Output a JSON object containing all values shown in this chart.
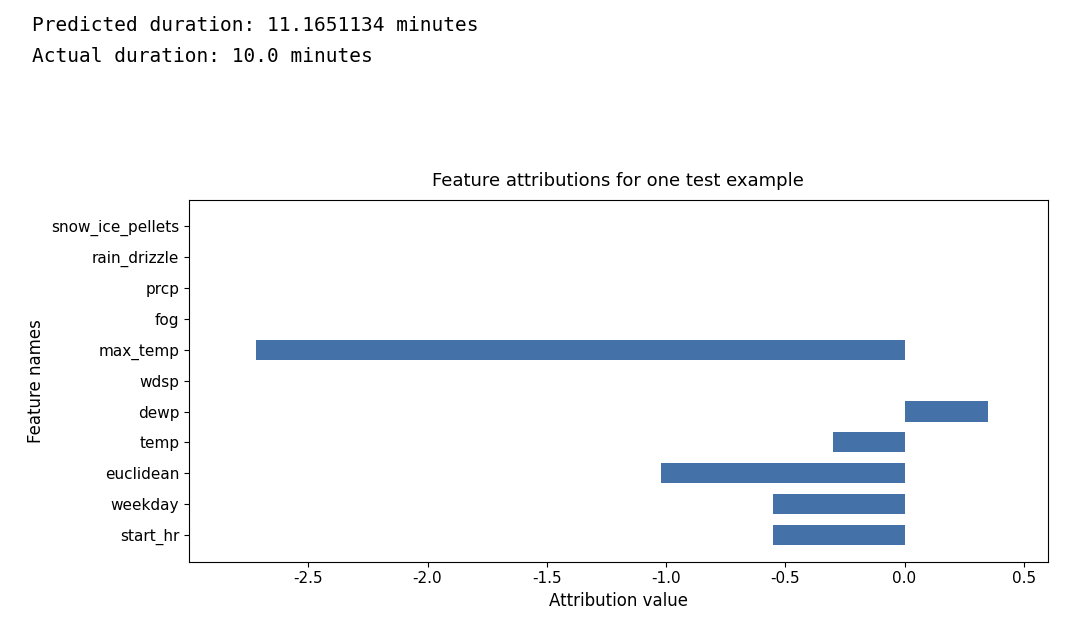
{
  "predicted_duration": "Predicted duration: 11.1651134 minutes",
  "actual_duration": "Actual duration: 10.0 minutes",
  "title": "Feature attributions for one test example",
  "xlabel": "Attribution value",
  "ylabel": "Feature names",
  "features": [
    "start_hr",
    "weekday",
    "euclidean",
    "temp",
    "dewp",
    "wdsp",
    "max_temp",
    "fog",
    "prcp",
    "rain_drizzle",
    "snow_ice_pellets"
  ],
  "values": [
    -0.55,
    -0.55,
    -1.02,
    -0.3,
    0.35,
    0.0,
    -2.72,
    0.0,
    0.0,
    0.0,
    0.0
  ],
  "bar_color": "#4472a8",
  "xlim": [
    -3.0,
    0.6
  ],
  "xticks": [
    -2.5,
    -2.0,
    -1.5,
    -1.0,
    -0.5,
    0.0,
    0.5
  ],
  "header_fontsize": 14,
  "title_fontsize": 13,
  "axis_fontsize": 12,
  "tick_fontsize": 11,
  "monospace_font": "DejaVu Sans Mono",
  "figure_width": 10.8,
  "figure_height": 6.24
}
